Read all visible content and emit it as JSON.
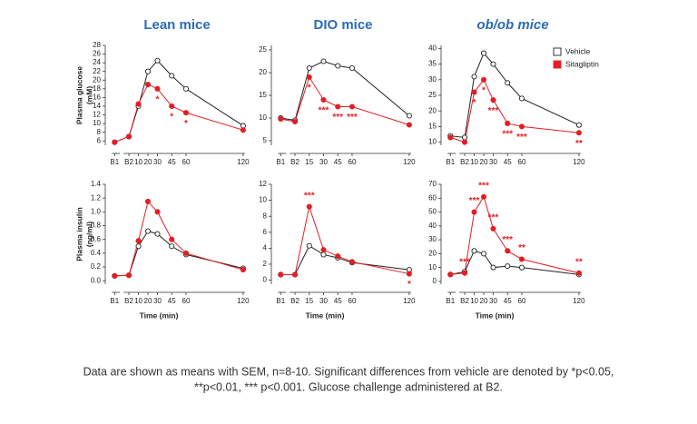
{
  "chart_data": [
    {
      "type": "line",
      "title": "Lean mice",
      "ylabel": [
        "Plasma glucose",
        "(mM)"
      ],
      "x": [
        -15,
        0,
        10,
        20,
        30,
        45,
        60,
        120
      ],
      "xlim": [
        -21,
        122
      ],
      "xticks": [
        {
          "value": -15,
          "label": "B1"
        },
        {
          "value": 0,
          "label": "B2"
        },
        10,
        20,
        30,
        45,
        60,
        120
      ],
      "ylim": [
        5,
        28
      ],
      "yticks": [
        6,
        8,
        10,
        12,
        14,
        16,
        18,
        20,
        22,
        24,
        26,
        28
      ],
      "series": [
        {
          "name": "Vehicle",
          "color": "#222222",
          "values": [
            5.7,
            7,
            14,
            22,
            24.5,
            21,
            18,
            9.5
          ]
        },
        {
          "name": "Sitagliptin",
          "color": "#e31e25",
          "values": [
            5.7,
            7,
            14.5,
            19,
            18,
            14,
            12.5,
            8.5
          ]
        }
      ],
      "annotations": [
        {
          "x": 30,
          "label": "*"
        },
        {
          "x": 45,
          "label": "*"
        },
        {
          "x": 60,
          "label": "*"
        }
      ]
    },
    {
      "type": "line",
      "title": "DIO mice",
      "x": [
        -15,
        0,
        15,
        30,
        45,
        60,
        120
      ],
      "xlim": [
        -21,
        122
      ],
      "xticks": [
        {
          "value": -15,
          "label": "B1"
        },
        {
          "value": 0,
          "label": "B2"
        },
        15,
        30,
        45,
        60,
        120
      ],
      "ylim": [
        4,
        26
      ],
      "yticks": [
        5,
        10,
        15,
        20,
        25
      ],
      "series": [
        {
          "name": "Vehicle",
          "color": "#222222",
          "values": [
            10,
            9.5,
            21,
            22.5,
            21.5,
            21,
            10.5
          ]
        },
        {
          "name": "Sitagliptin",
          "color": "#e31e25",
          "values": [
            9.8,
            9.2,
            19,
            14,
            12.5,
            12.5,
            8.5
          ]
        }
      ],
      "annotations": [
        {
          "x": 15,
          "label": "*"
        },
        {
          "x": 30,
          "label": "***"
        },
        {
          "x": 45,
          "label": "***"
        },
        {
          "x": 60,
          "label": "***"
        }
      ]
    },
    {
      "type": "line",
      "title": "ob/ob mice",
      "legend": "upper right",
      "x": [
        -15,
        0,
        10,
        20,
        30,
        45,
        60,
        120
      ],
      "xlim": [
        -21,
        122
      ],
      "xticks": [
        {
          "value": -15,
          "label": "B1"
        },
        {
          "value": 0,
          "label": "B2"
        },
        10,
        20,
        30,
        45,
        60,
        120
      ],
      "ylim": [
        9,
        41
      ],
      "yticks": [
        10,
        15,
        20,
        25,
        30,
        35,
        40
      ],
      "series": [
        {
          "name": "Vehicle",
          "color": "#222222",
          "values": [
            12,
            11.5,
            31,
            38.5,
            35,
            29,
            24,
            15.5
          ]
        },
        {
          "name": "Sitagliptin",
          "color": "#e31e25",
          "values": [
            11.5,
            10,
            26,
            30,
            23.5,
            16,
            15,
            13
          ]
        }
      ],
      "annotations": [
        {
          "x": 10,
          "label": "*"
        },
        {
          "x": 20,
          "label": "*"
        },
        {
          "x": 30,
          "label": "***"
        },
        {
          "x": 45,
          "label": "***"
        },
        {
          "x": 60,
          "label": "***"
        },
        {
          "x": 120,
          "label": "**"
        }
      ]
    },
    {
      "type": "line",
      "ylabel": [
        "Plasma insulin",
        "(ng/ml)"
      ],
      "xlabel": "Time (min)",
      "x": [
        -15,
        0,
        10,
        20,
        30,
        45,
        60,
        120
      ],
      "xlim": [
        -21,
        122
      ],
      "xticks": [
        {
          "value": -15,
          "label": "B1"
        },
        {
          "value": 0,
          "label": "B2"
        },
        10,
        20,
        30,
        45,
        60,
        120
      ],
      "ylim": [
        -0.05,
        1.4
      ],
      "yticks": [
        {
          "value": 0,
          "label": "0.0"
        },
        0.2,
        0.4,
        0.6,
        0.8,
        {
          "value": 1,
          "label": "1.0"
        },
        1.2,
        1.4
      ],
      "series": [
        {
          "name": "Vehicle",
          "color": "#222222",
          "values": [
            0.07,
            0.08,
            0.5,
            0.72,
            0.68,
            0.5,
            0.38,
            0.18
          ]
        },
        {
          "name": "Sitagliptin",
          "color": "#e31e25",
          "values": [
            0.07,
            0.08,
            0.58,
            1.15,
            1.0,
            0.6,
            0.4,
            0.16
          ]
        }
      ],
      "annotations": []
    },
    {
      "type": "line",
      "xlabel": "Time (min)",
      "x": [
        -15,
        0,
        15,
        30,
        45,
        60,
        120
      ],
      "xlim": [
        -21,
        122
      ],
      "xticks": [
        {
          "value": -15,
          "label": "B1"
        },
        {
          "value": 0,
          "label": "B2"
        },
        15,
        30,
        45,
        60,
        120
      ],
      "ylim": [
        -0.5,
        12
      ],
      "yticks": [
        0,
        2,
        4,
        6,
        8,
        10,
        12
      ],
      "series": [
        {
          "name": "Vehicle",
          "color": "#222222",
          "values": [
            0.7,
            0.7,
            4.3,
            3.2,
            2.8,
            2.2,
            1.3
          ]
        },
        {
          "name": "Sitagliptin",
          "color": "#e31e25",
          "values": [
            0.7,
            0.7,
            9.2,
            3.8,
            3.0,
            2.3,
            0.8
          ]
        }
      ],
      "annotations": [
        {
          "x": 15,
          "label": "***",
          "above": true
        },
        {
          "x": 120,
          "label": "*"
        }
      ]
    },
    {
      "type": "line",
      "xlabel": "Time (min)",
      "x": [
        -15,
        0,
        10,
        20,
        30,
        45,
        60,
        120
      ],
      "xlim": [
        -21,
        122
      ],
      "xticks": [
        {
          "value": -15,
          "label": "B1"
        },
        {
          "value": 0,
          "label": "B2"
        },
        10,
        20,
        30,
        45,
        60,
        120
      ],
      "ylim": [
        -2,
        70
      ],
      "yticks": [
        0,
        10,
        20,
        30,
        40,
        50,
        60,
        70
      ],
      "series": [
        {
          "name": "Vehicle",
          "color": "#222222",
          "values": [
            5,
            7,
            22,
            20,
            10,
            11,
            10,
            5
          ]
        },
        {
          "name": "Sitagliptin",
          "color": "#e31e25",
          "values": [
            5,
            6,
            50,
            61,
            38,
            22,
            16,
            6
          ]
        }
      ],
      "annotations": [
        {
          "x": 0,
          "label": "***",
          "above": true
        },
        {
          "x": 10,
          "label": "***",
          "above": true
        },
        {
          "x": 20,
          "label": "***",
          "above": true
        },
        {
          "x": 30,
          "label": "***",
          "above": true
        },
        {
          "x": 45,
          "label": "***",
          "above": true
        },
        {
          "x": 60,
          "label": "**",
          "above": true
        },
        {
          "x": 120,
          "label": "**",
          "above": true
        }
      ]
    }
  ],
  "caption": [
    "Data are shown as means with SEM, n=8-10. Significant differences from vehicle are denoted by *p<0.05,",
    "**p<0.01, *** p<0.001. Glucose challenge administered at B2."
  ]
}
